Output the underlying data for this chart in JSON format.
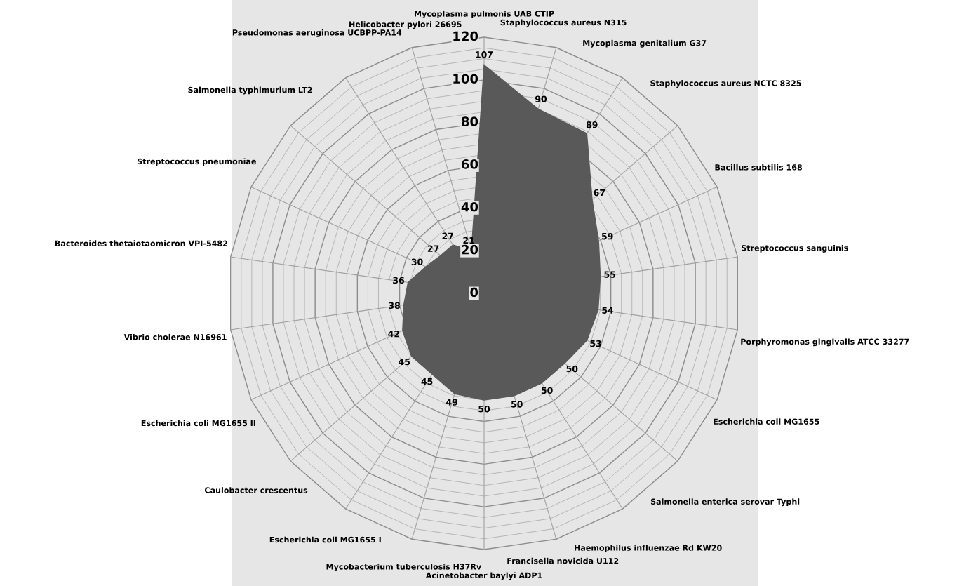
{
  "chart_data": {
    "type": "radar",
    "categories": [
      "Mycoplasma pulmonis UAB CTIP",
      "Staphylococcus aureus N315",
      "Mycoplasma genitalium G37",
      "Staphylococcus aureus NCTC 8325",
      "Bacillus subtilis 168",
      "Streptococcus sanguinis",
      "Porphyromonas gingivalis ATCC 33277",
      "Escherichia coli MG1655",
      "Salmonella enterica serovar Typhi",
      "Haemophilus influenzae Rd KW20",
      "Francisella novicida U112",
      "Acinetobacter baylyi ADP1",
      "Mycobacterium tuberculosis H37Rv",
      "Escherichia coli MG1655 I",
      "Caulobacter crescentus",
      "Escherichia coli MG1655 II",
      "Vibrio cholerae N16961",
      "Bacteroides thetaiotaomicron VPI-5482",
      "Streptococcus pneumoniae",
      "Salmonella typhimurium LT2",
      "Pseudomonas aeruginosa UCBPP-PA14",
      "Helicobacter pylori 26695"
    ],
    "series": [
      {
        "color": "#595959",
        "values": [
          107,
          90,
          89,
          67,
          59,
          55,
          54,
          53,
          50,
          50,
          50,
          50,
          49,
          45,
          45,
          42,
          38,
          36,
          30,
          27,
          27,
          21
        ]
      }
    ],
    "ylim": [
      0,
      120
    ],
    "yticks": [
      0,
      20,
      40,
      60,
      80,
      100,
      120
    ],
    "grid": true,
    "data_labels": true
  }
}
